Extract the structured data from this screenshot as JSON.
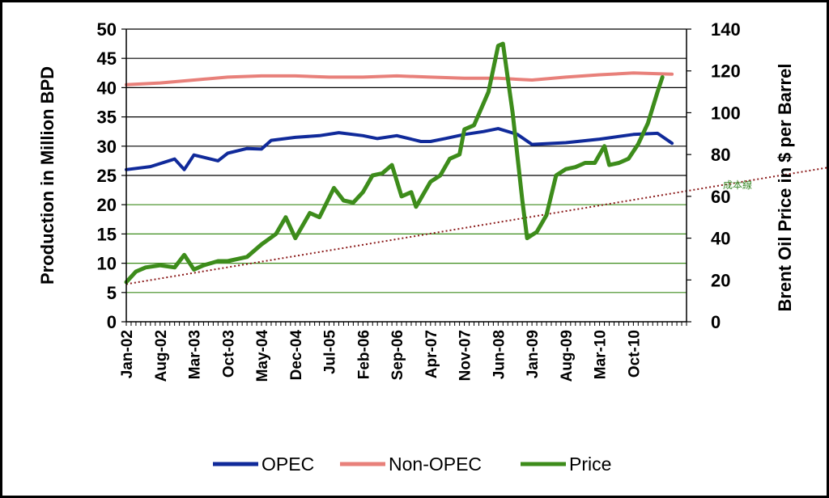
{
  "chart_data": {
    "type": "line",
    "title": "",
    "y_left_label": "Production in Million BPD",
    "y_right_label": "Brent  Oil Price in $ per Barrel",
    "y_left_range": [
      0,
      50
    ],
    "y_left_ticks": [
      0,
      5,
      10,
      15,
      20,
      25,
      30,
      35,
      40,
      45,
      50
    ],
    "y_right_range": [
      0,
      140
    ],
    "y_right_ticks": [
      0,
      20,
      40,
      60,
      80,
      100,
      120,
      140
    ],
    "x_tick_labels": [
      "Jan-02",
      "Aug-02",
      "Mar-03",
      "Oct-03",
      "May-04",
      "Dec-04",
      "Jul-05",
      "Feb-06",
      "Sep-06",
      "Apr-07",
      "Nov-07",
      "Jun-08",
      "Jan-09",
      "Aug-09",
      "Mar-10",
      "Oct-10"
    ],
    "legend_position": "bottom",
    "grid": true,
    "series": [
      {
        "name": "OPEC",
        "axis": "left",
        "color": "#102a9a",
        "points": [
          [
            "Jan-02",
            26
          ],
          [
            "Jun-02",
            26.5
          ],
          [
            "Nov-02",
            27.8
          ],
          [
            "Jan-03",
            26
          ],
          [
            "Mar-03",
            28.5
          ],
          [
            "Aug-03",
            27.5
          ],
          [
            "Oct-03",
            28.8
          ],
          [
            "Feb-04",
            29.6
          ],
          [
            "May-04",
            29.5
          ],
          [
            "Jul-04",
            31
          ],
          [
            "Oct-04",
            31.3
          ],
          [
            "Dec-04",
            31.5
          ],
          [
            "May-05",
            31.8
          ],
          [
            "Sep-05",
            32.3
          ],
          [
            "Feb-06",
            31.8
          ],
          [
            "May-06",
            31.3
          ],
          [
            "Sep-06",
            31.8
          ],
          [
            "Feb-07",
            30.8
          ],
          [
            "Apr-07",
            30.8
          ],
          [
            "Jul-07",
            31.3
          ],
          [
            "Nov-07",
            32
          ],
          [
            "Mar-08",
            32.5
          ],
          [
            "Jun-08",
            33
          ],
          [
            "Oct-08",
            32
          ],
          [
            "Jan-09",
            30.3
          ],
          [
            "Aug-09",
            30.6
          ],
          [
            "Mar-10",
            31.2
          ],
          [
            "Oct-10",
            32
          ],
          [
            "Mar-11",
            32.2
          ],
          [
            "Jun-11",
            30.5
          ]
        ]
      },
      {
        "name": "Non-OPEC",
        "axis": "left",
        "color": "#e8807a",
        "points": [
          [
            "Jan-02",
            40.5
          ],
          [
            "Aug-02",
            40.8
          ],
          [
            "Mar-03",
            41.3
          ],
          [
            "Oct-03",
            41.8
          ],
          [
            "May-04",
            42
          ],
          [
            "Dec-04",
            42
          ],
          [
            "Jul-05",
            41.8
          ],
          [
            "Feb-06",
            41.8
          ],
          [
            "Sep-06",
            42
          ],
          [
            "Apr-07",
            41.8
          ],
          [
            "Nov-07",
            41.6
          ],
          [
            "Jun-08",
            41.6
          ],
          [
            "Jan-09",
            41.3
          ],
          [
            "Aug-09",
            41.8
          ],
          [
            "Mar-10",
            42.2
          ],
          [
            "Oct-10",
            42.5
          ],
          [
            "Jun-11",
            42.3
          ]
        ]
      },
      {
        "name": "Price",
        "axis": "right",
        "color": "#3d8c1b",
        "points": [
          [
            "Jan-02",
            19
          ],
          [
            "Mar-02",
            24
          ],
          [
            "May-02",
            26
          ],
          [
            "Aug-02",
            27
          ],
          [
            "Nov-02",
            26
          ],
          [
            "Jan-03",
            32
          ],
          [
            "Mar-03",
            25
          ],
          [
            "May-03",
            27
          ],
          [
            "Aug-03",
            29
          ],
          [
            "Oct-03",
            29
          ],
          [
            "Feb-04",
            31
          ],
          [
            "May-04",
            37
          ],
          [
            "Aug-04",
            42
          ],
          [
            "Oct-04",
            50
          ],
          [
            "Dec-04",
            40
          ],
          [
            "Mar-05",
            52
          ],
          [
            "May-05",
            50
          ],
          [
            "Aug-05",
            64
          ],
          [
            "Oct-05",
            58
          ],
          [
            "Dec-05",
            57
          ],
          [
            "Feb-06",
            62
          ],
          [
            "Apr-06",
            70
          ],
          [
            "Jun-06",
            71
          ],
          [
            "Aug-06",
            75
          ],
          [
            "Oct-06",
            60
          ],
          [
            "Dec-06",
            62
          ],
          [
            "Jan-07",
            55
          ],
          [
            "Apr-07",
            67
          ],
          [
            "Jun-07",
            70
          ],
          [
            "Aug-07",
            78
          ],
          [
            "Oct-07",
            80
          ],
          [
            "Nov-07",
            92
          ],
          [
            "Jan-08",
            94
          ],
          [
            "Apr-08",
            110
          ],
          [
            "Jun-08",
            132
          ],
          [
            "Jul-08",
            133
          ],
          [
            "Sep-08",
            100
          ],
          [
            "Nov-08",
            58
          ],
          [
            "Dec-08",
            40
          ],
          [
            "Feb-09",
            43
          ],
          [
            "Apr-09",
            51
          ],
          [
            "Jun-09",
            70
          ],
          [
            "Aug-09",
            73
          ],
          [
            "Oct-09",
            74
          ],
          [
            "Dec-09",
            76
          ],
          [
            "Feb-10",
            76
          ],
          [
            "Apr-10",
            84
          ],
          [
            "May-10",
            75
          ],
          [
            "Jul-10",
            76
          ],
          [
            "Sep-10",
            78
          ],
          [
            "Nov-10",
            85
          ],
          [
            "Jan-11",
            95
          ],
          [
            "Mar-11",
            110
          ],
          [
            "Apr-11",
            117
          ]
        ]
      }
    ],
    "trend_line": {
      "style": "dotted",
      "color": "#8b1a1a",
      "axis": "right",
      "from": [
        "Jan-02",
        18
      ],
      "to": [
        "Sep-11",
        70
      ]
    },
    "annotation": {
      "text": "成本線",
      "color": "#3a8a2a"
    }
  },
  "legend": {
    "items": [
      {
        "label": "OPEC",
        "color": "#102a9a"
      },
      {
        "label": "Non-OPEC",
        "color": "#e8807a"
      },
      {
        "label": "Price",
        "color": "#3d8c1b"
      }
    ]
  }
}
